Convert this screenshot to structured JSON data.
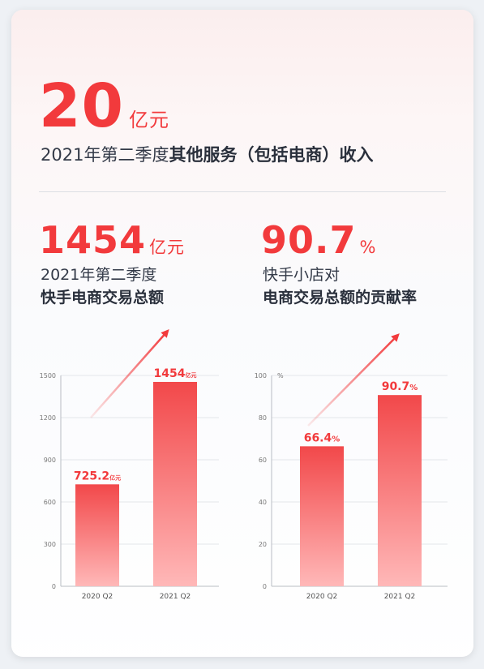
{
  "headline": {
    "value": "20",
    "unit": "亿元",
    "desc_prefix": "2021年第二季度",
    "desc_bold": "其他服务（包括电商）收入"
  },
  "stat_left": {
    "value": "1454",
    "unit": "亿元",
    "line1": "2021年第二季度",
    "line2": "快手电商交易总额"
  },
  "stat_right": {
    "value": "90.7",
    "unit": "%",
    "line1": "快手小店对",
    "line2": "电商交易总额的贡献率"
  },
  "colors": {
    "accent": "#f23a3c",
    "bar_top": "#f2484a",
    "bar_bottom": "#ffb8b8"
  },
  "chart_data": [
    {
      "type": "bar",
      "categories": [
        "2020 Q2",
        "2021 Q2"
      ],
      "values": [
        725.2,
        1454
      ],
      "value_labels": [
        "725.2",
        "1454"
      ],
      "value_unit": "亿元",
      "ylim": [
        0,
        1500
      ],
      "yticks": [
        0,
        300,
        600,
        900,
        1200,
        1500
      ],
      "y_unit_label": "",
      "grid": true
    },
    {
      "type": "bar",
      "categories": [
        "2020 Q2",
        "2021 Q2"
      ],
      "values": [
        66.4,
        90.7
      ],
      "value_labels": [
        "66.4",
        "90.7"
      ],
      "value_unit": "%",
      "ylim": [
        0,
        100
      ],
      "yticks": [
        0,
        20,
        40,
        60,
        80,
        100
      ],
      "y_unit_label": "%",
      "grid": true
    }
  ]
}
